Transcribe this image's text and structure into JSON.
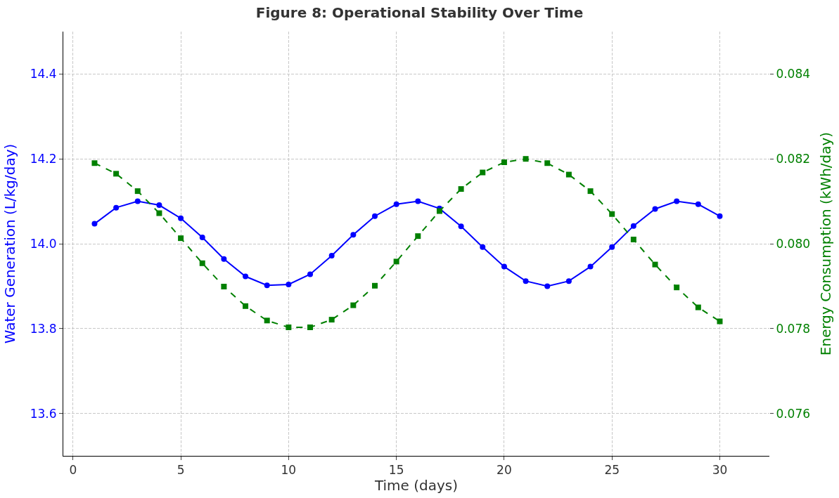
{
  "chart_data": {
    "type": "line",
    "title": "Figure 8: Operational Stability Over Time",
    "xlabel": "Time (days)",
    "ylabel": "Water Generation (L/kg/day)",
    "y2label": "Energy Consumption (kWh/day)",
    "x": [
      1,
      2,
      3,
      4,
      5,
      6,
      7,
      8,
      9,
      10,
      11,
      12,
      13,
      14,
      15,
      16,
      17,
      18,
      19,
      20,
      21,
      22,
      23,
      24,
      25,
      26,
      27,
      28,
      29,
      30
    ],
    "series": [
      {
        "color": "#0000ff",
        "marker": "circle",
        "line_style": "solid",
        "axis": "y",
        "values": [
          14.047,
          14.085,
          14.1,
          14.091,
          14.06,
          14.015,
          13.964,
          13.923,
          13.902,
          13.904,
          13.928,
          13.972,
          14.021,
          14.065,
          14.093,
          14.1,
          14.083,
          14.041,
          13.992,
          13.946,
          13.912,
          13.9,
          13.912,
          13.946,
          13.992,
          14.042,
          14.082,
          14.1,
          14.093,
          14.065
        ]
      },
      {
        "color": "#008000",
        "marker": "square",
        "line_style": "dashed",
        "axis": "y2",
        "values": [
          0.0819,
          0.08165,
          0.08124,
          0.08072,
          0.08013,
          0.07954,
          0.07899,
          0.07853,
          0.07819,
          0.07803,
          0.07803,
          0.07821,
          0.07855,
          0.07901,
          0.07958,
          0.08018,
          0.08077,
          0.08129,
          0.08168,
          0.08192,
          0.082,
          0.0819,
          0.08163,
          0.08124,
          0.0807,
          0.0801,
          0.07951,
          0.07897,
          0.0785,
          0.07817
        ]
      }
    ],
    "xlim": [
      -0.45,
      32.3
    ],
    "xticks": [
      0,
      5,
      10,
      15,
      20,
      25,
      30
    ],
    "ylim": [
      13.5,
      14.5
    ],
    "yticks": [
      13.6,
      13.8,
      {
        "value": 14,
        "label": "14.0"
      },
      14.2,
      14.4
    ],
    "y2lim": [
      0.075,
      0.085
    ],
    "y2ticks": [
      0.076,
      0.078,
      {
        "value": 0.08,
        "label": "0.080"
      },
      0.082,
      0.084
    ],
    "grid": true
  }
}
